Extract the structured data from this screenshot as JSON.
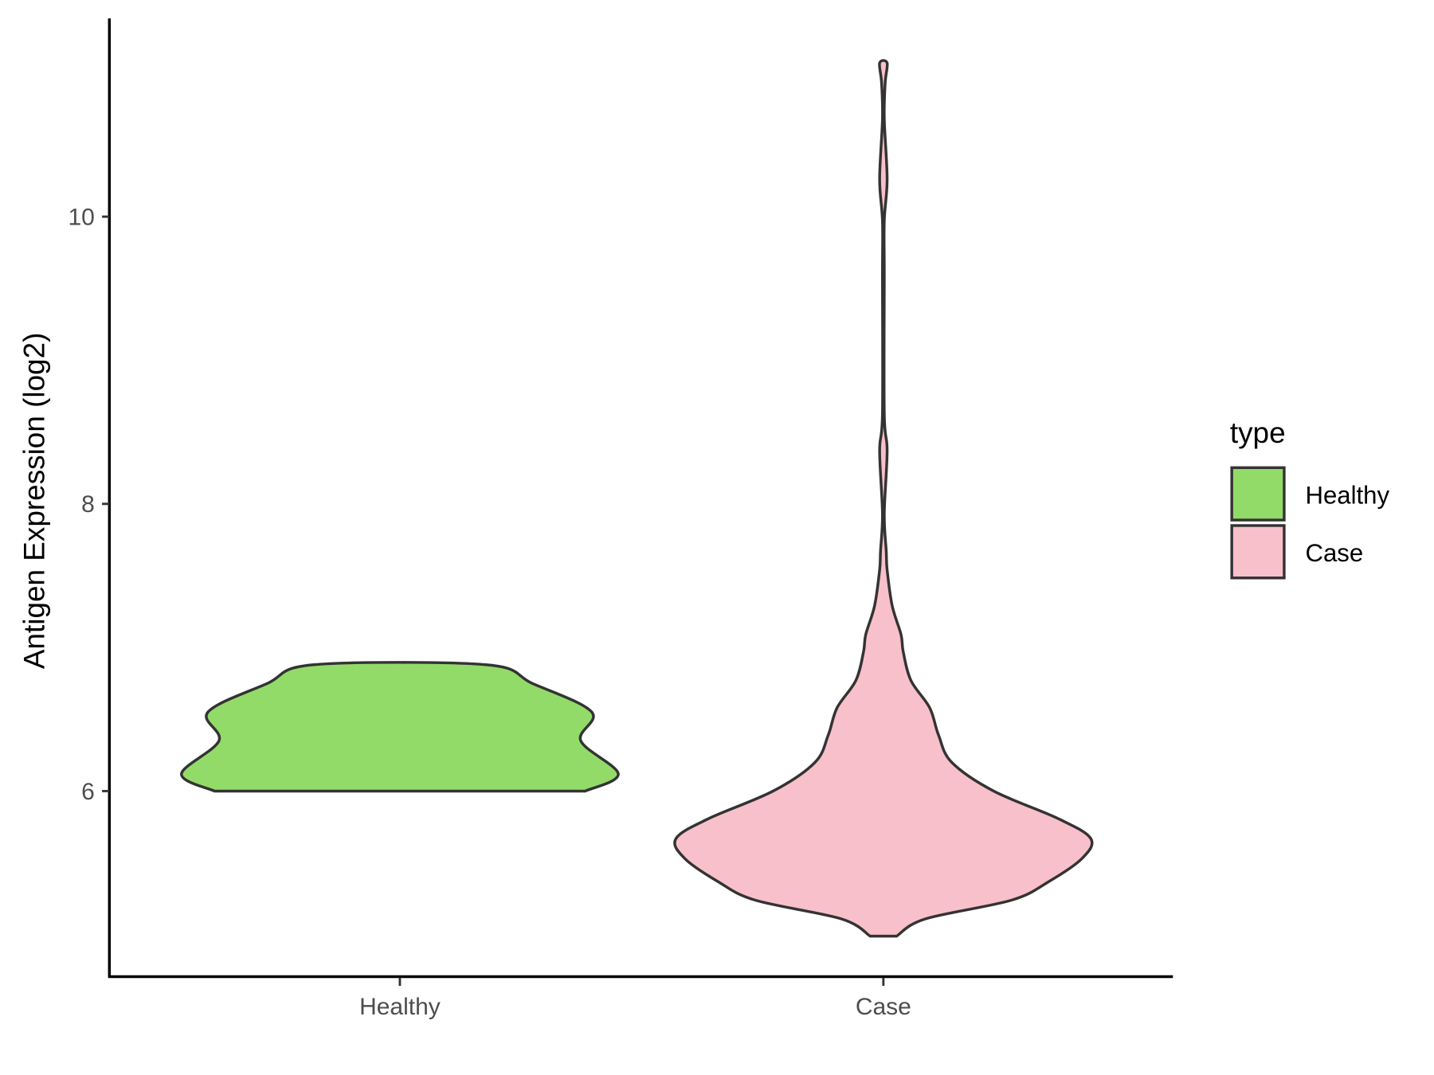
{
  "chart_data": {
    "type": "violin",
    "title": "",
    "xlabel": "",
    "ylabel": "Antigen Expression (log2)",
    "categories": [
      "Healthy",
      "Case"
    ],
    "yticks": [
      6,
      8,
      10
    ],
    "ylim": [
      4.82,
      11.5
    ],
    "legend": {
      "title": "type",
      "placement": "right",
      "entries": [
        "Healthy",
        "Case"
      ]
    },
    "colors": {
      "Healthy": "#93DB69",
      "Case": "#F8C0CB",
      "outline": "#333333"
    },
    "series": [
      {
        "name": "Healthy",
        "density_profile": [
          [
            6.0,
            0.84
          ],
          [
            6.12,
            0.99
          ],
          [
            6.35,
            0.82
          ],
          [
            6.55,
            0.87
          ],
          [
            6.75,
            0.6
          ],
          [
            6.88,
            0.39
          ]
        ]
      },
      {
        "name": "Case",
        "density_profile": [
          [
            4.99,
            0.06
          ],
          [
            5.11,
            0.19
          ],
          [
            5.24,
            0.58
          ],
          [
            5.37,
            0.75
          ],
          [
            5.53,
            0.9
          ],
          [
            5.67,
            0.94
          ],
          [
            5.81,
            0.79
          ],
          [
            6.0,
            0.5
          ],
          [
            6.2,
            0.31
          ],
          [
            6.39,
            0.25
          ],
          [
            6.58,
            0.21
          ],
          [
            6.77,
            0.125
          ],
          [
            6.97,
            0.09
          ],
          [
            7.09,
            0.08
          ],
          [
            7.29,
            0.04
          ],
          [
            7.54,
            0.017
          ],
          [
            7.67,
            0.013
          ],
          [
            7.93,
            0.004
          ],
          [
            8.37,
            0.017
          ],
          [
            8.63,
            0.004
          ],
          [
            9.59,
            0.004
          ],
          [
            9.97,
            0.004
          ],
          [
            10.26,
            0.017
          ],
          [
            10.68,
            0.004
          ],
          [
            10.93,
            0.008
          ],
          [
            11.07,
            0.017
          ]
        ]
      }
    ]
  }
}
